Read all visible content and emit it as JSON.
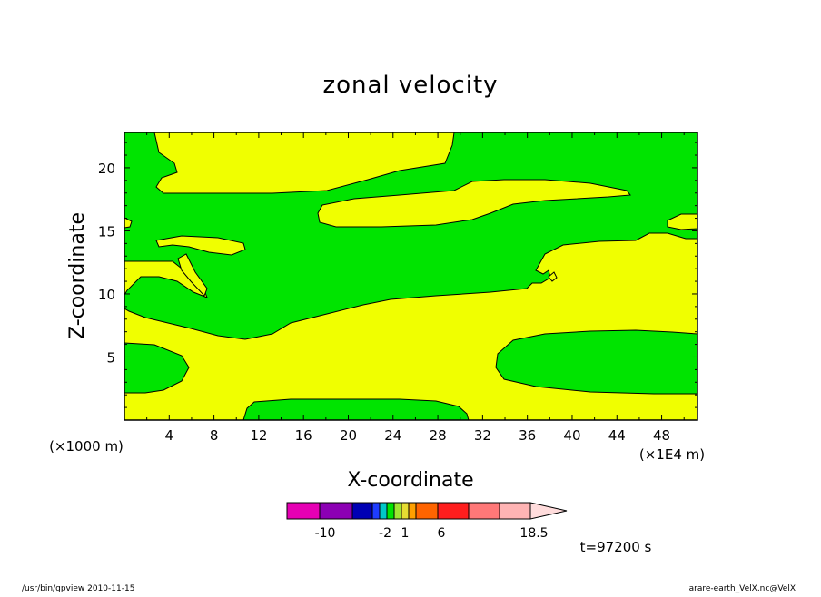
{
  "chart_data": {
    "type": "heatmap",
    "title": "zonal velocity",
    "xlabel": "X-coordinate",
    "ylabel": "Z-coordinate",
    "x_scale_note": "(×1000 m)",
    "x_unit_note": "(×1E4 m)",
    "x_ticks": [
      "4",
      "8",
      "12",
      "16",
      "20",
      "24",
      "28",
      "32",
      "36",
      "40",
      "44",
      "48"
    ],
    "x_tick_values": [
      4,
      8,
      12,
      16,
      20,
      24,
      28,
      32,
      36,
      40,
      44,
      48
    ],
    "y_ticks": [
      "5",
      "10",
      "15",
      "20"
    ],
    "y_tick_values": [
      5,
      10,
      15,
      20
    ],
    "xlim": [
      0,
      51.2
    ],
    "ylim": [
      0,
      22.8
    ],
    "field_colors": {
      "positive_region": "#f0ff00",
      "near_zero_region": "#00e400"
    },
    "colorbar": {
      "colors": [
        "#e600b4",
        "#8c00b4",
        "#0000b4",
        "#1e3cff",
        "#00c8c8",
        "#00e400",
        "#a0e632",
        "#e6dc32",
        "#ffa000",
        "#ff6400",
        "#ff1e1e",
        "#ff7878",
        "#ffb4b4",
        "#ffdcdc"
      ],
      "tick_labels": [
        "-10",
        "-2",
        "1",
        "6",
        "18.5"
      ]
    },
    "time_label": "t=97200 s"
  },
  "footer": {
    "left": "/usr/bin/gpview  2010-11-15",
    "right": "arare-earth_VelX.nc@VelX"
  }
}
